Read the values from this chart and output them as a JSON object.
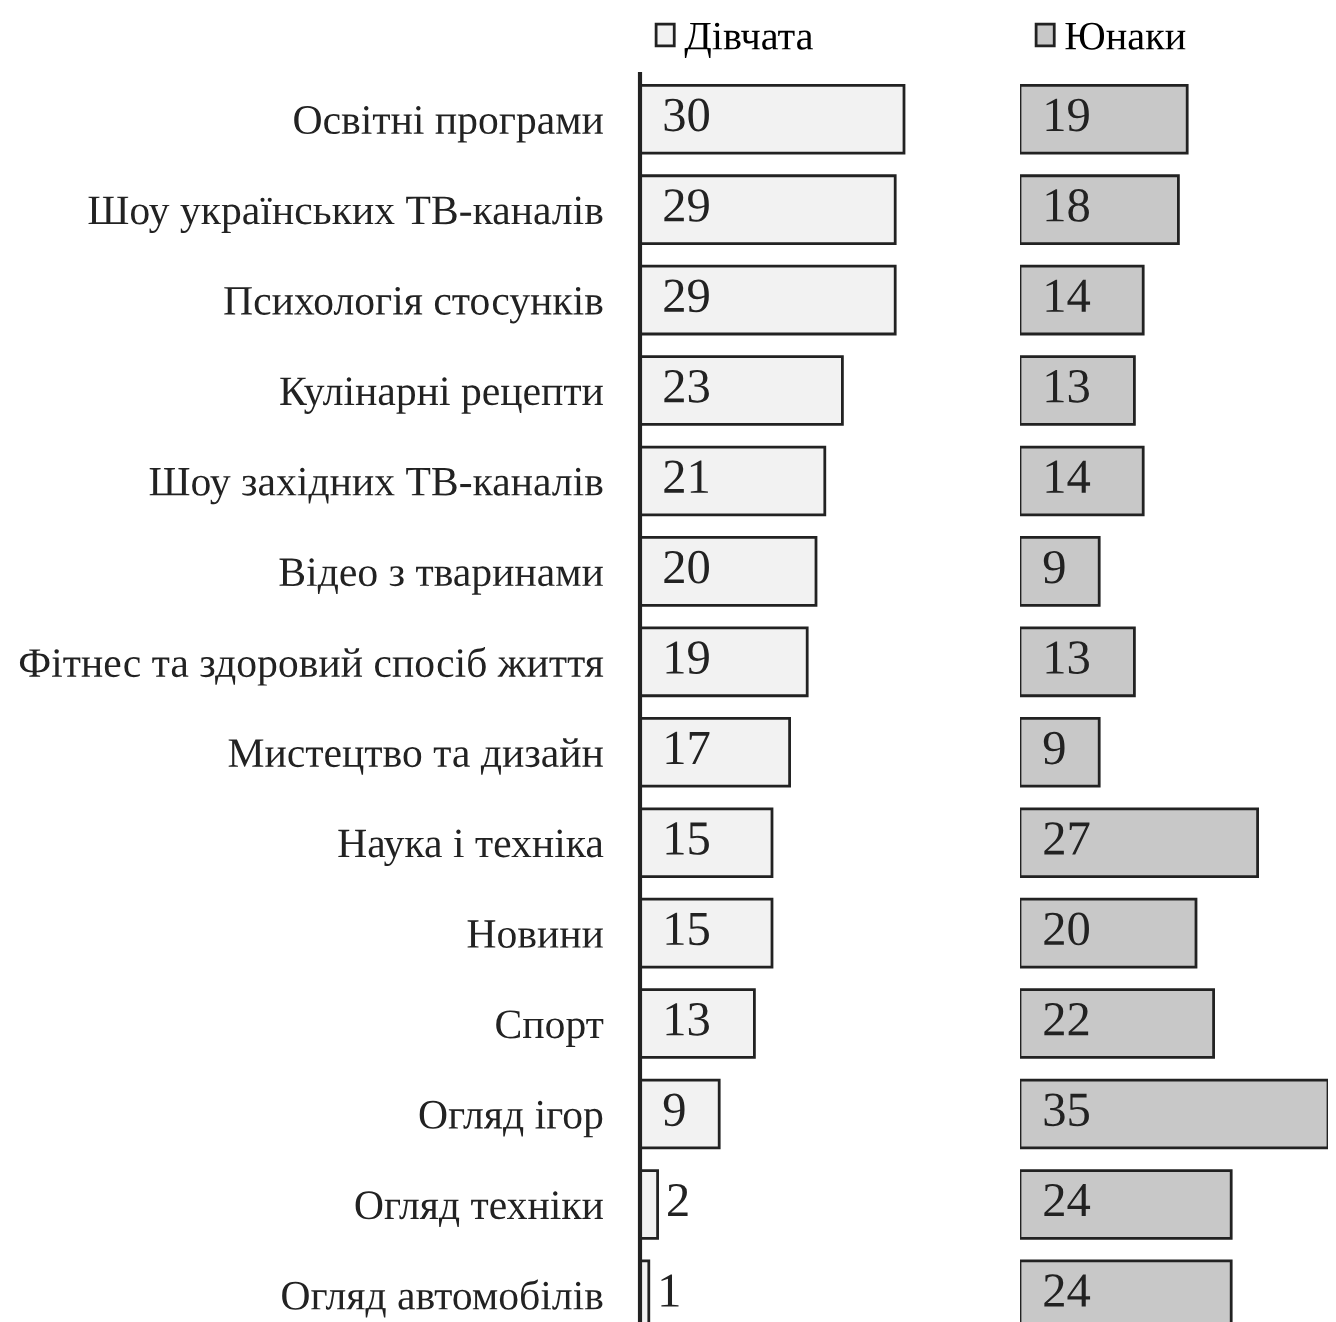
{
  "chart_data": [
    {
      "type": "bar",
      "orientation": "horizontal",
      "categories": [
        "Освітні програми",
        "Шоу українських ТВ-каналів",
        "Психологія стосунків",
        "Кулінарні рецепти",
        "Шоу західних ТВ-каналів",
        "Відео з тваринами",
        "Фітнес та здоровий спосіб життя",
        "Мистецтво та дизайн",
        "Наука і техніка",
        "Новини",
        "Спорт",
        "Огляд ігор",
        "Огляд техніки",
        "Огляд автомобілів"
      ],
      "series": [
        {
          "name": "Дівчата",
          "color": "#f2f2f2",
          "values": [
            30,
            29,
            29,
            23,
            21,
            20,
            19,
            17,
            15,
            15,
            13,
            9,
            2,
            1
          ]
        }
      ],
      "tick_labels": "y",
      "data_labels": true,
      "legend": "top left"
    },
    {
      "type": "bar",
      "orientation": "horizontal",
      "categories": [
        null,
        null,
        null,
        null,
        null,
        null,
        null,
        null,
        null,
        null,
        null,
        null,
        null,
        null
      ],
      "series": [
        {
          "name": "Юнаки",
          "color": "#c8c8c8",
          "values": [
            19,
            18,
            14,
            13,
            14,
            9,
            13,
            9,
            27,
            20,
            22,
            35,
            24,
            24
          ]
        }
      ],
      "tick_labels": false,
      "data_labels": true,
      "legend": "top left"
    }
  ]
}
